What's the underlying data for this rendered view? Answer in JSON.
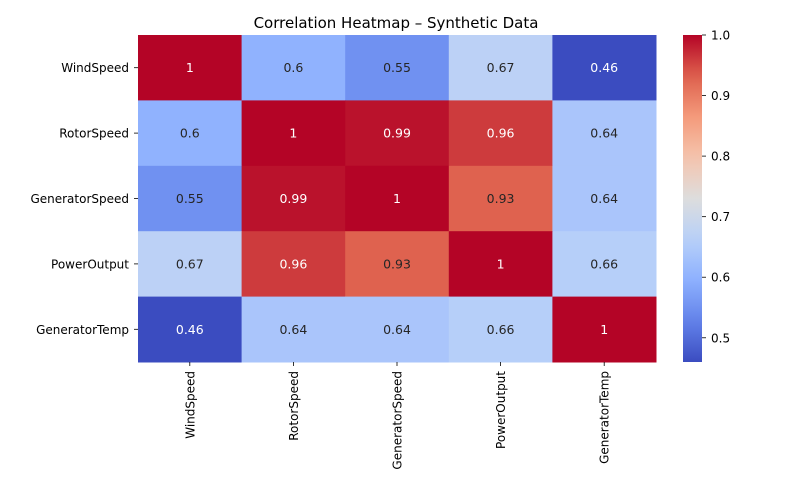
{
  "chart_data": {
    "type": "heatmap",
    "title": "Correlation Heatmap – Synthetic Data",
    "row_labels": [
      "WindSpeed",
      "RotorSpeed",
      "GeneratorSpeed",
      "PowerOutput",
      "GeneratorTemp"
    ],
    "col_labels": [
      "WindSpeed",
      "RotorSpeed",
      "GeneratorSpeed",
      "PowerOutput",
      "GeneratorTemp"
    ],
    "values": [
      [
        1,
        0.6,
        0.55,
        0.67,
        0.46
      ],
      [
        0.6,
        1,
        0.99,
        0.96,
        0.64
      ],
      [
        0.55,
        0.99,
        1,
        0.93,
        0.64
      ],
      [
        0.67,
        0.96,
        0.93,
        1,
        0.66
      ],
      [
        0.46,
        0.64,
        0.64,
        0.66,
        1
      ]
    ],
    "cell_labels": [
      [
        "1",
        "0.6",
        "0.55",
        "0.67",
        "0.46"
      ],
      [
        "0.6",
        "1",
        "0.99",
        "0.96",
        "0.64"
      ],
      [
        "0.55",
        "0.99",
        "1",
        "0.93",
        "0.64"
      ],
      [
        "0.67",
        "0.96",
        "0.93",
        "1",
        "0.66"
      ],
      [
        "0.46",
        "0.64",
        "0.64",
        "0.66",
        "1"
      ]
    ],
    "colormap": "coolwarm",
    "colorbar": {
      "range": [
        0.46,
        1.0
      ],
      "ticks": [
        0.5,
        0.6,
        0.7,
        0.8,
        0.9,
        1.0
      ],
      "tick_labels": [
        "0.5",
        "0.6",
        "0.7",
        "0.8",
        "0.9",
        "1.0"
      ],
      "placement": "right"
    }
  }
}
